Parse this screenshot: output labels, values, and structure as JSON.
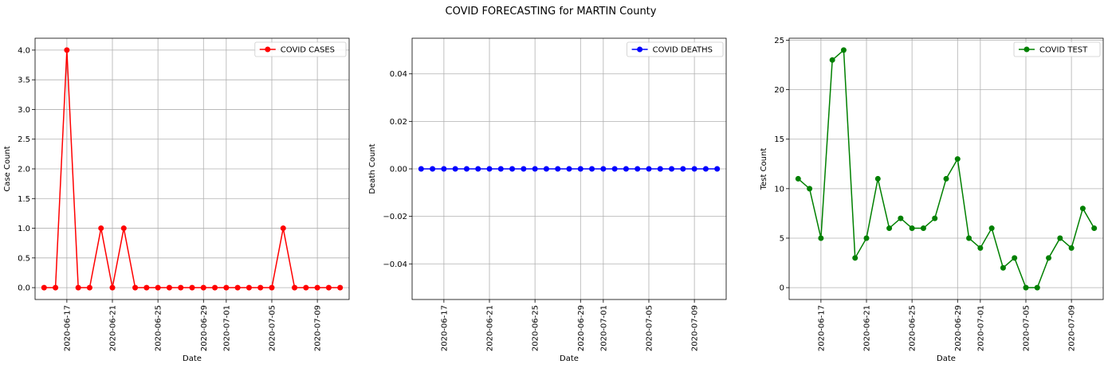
{
  "figure": {
    "suptitle": "COVID FORECASTING for MARTIN County"
  },
  "chart_data": [
    {
      "type": "line",
      "x": [
        "2020-06-15",
        "2020-06-16",
        "2020-06-17",
        "2020-06-18",
        "2020-06-19",
        "2020-06-20",
        "2020-06-21",
        "2020-06-22",
        "2020-06-23",
        "2020-06-24",
        "2020-06-25",
        "2020-06-26",
        "2020-06-27",
        "2020-06-28",
        "2020-06-29",
        "2020-06-30",
        "2020-07-01",
        "2020-07-02",
        "2020-07-03",
        "2020-07-04",
        "2020-07-05",
        "2020-07-06",
        "2020-07-07",
        "2020-07-08",
        "2020-07-09",
        "2020-07-10",
        "2020-07-11"
      ],
      "series": [
        {
          "name": "COVID CASES",
          "color": "#ff0000",
          "marker": "circle",
          "values": [
            0,
            0,
            4,
            0,
            0,
            1,
            0,
            1,
            0,
            0,
            0,
            0,
            0,
            0,
            0,
            0,
            0,
            0,
            0,
            0,
            0,
            1,
            0,
            0,
            0,
            0,
            0
          ]
        }
      ],
      "xticks": [
        "2020-06-17",
        "2020-06-21",
        "2020-06-25",
        "2020-06-29",
        "2020-07-01",
        "2020-07-05",
        "2020-07-09"
      ],
      "yticks": [
        0.0,
        0.5,
        1.0,
        1.5,
        2.0,
        2.5,
        3.0,
        3.5,
        4.0
      ],
      "ytick_labels": [
        "0.0",
        "0.5",
        "1.0",
        "1.5",
        "2.0",
        "2.5",
        "3.0",
        "3.5",
        "4.0"
      ],
      "xlim": [
        "2020-06-14T05:00",
        "2020-07-11T19:00"
      ],
      "ylim": [
        -0.2,
        4.2
      ],
      "xlabel": "Date",
      "ylabel": "Case Count",
      "grid": true,
      "legend": "top-right"
    },
    {
      "type": "line",
      "x": [
        "2020-06-15",
        "2020-06-16",
        "2020-06-17",
        "2020-06-18",
        "2020-06-19",
        "2020-06-20",
        "2020-06-21",
        "2020-06-22",
        "2020-06-23",
        "2020-06-24",
        "2020-06-25",
        "2020-06-26",
        "2020-06-27",
        "2020-06-28",
        "2020-06-29",
        "2020-06-30",
        "2020-07-01",
        "2020-07-02",
        "2020-07-03",
        "2020-07-04",
        "2020-07-05",
        "2020-07-06",
        "2020-07-07",
        "2020-07-08",
        "2020-07-09",
        "2020-07-10",
        "2020-07-11"
      ],
      "series": [
        {
          "name": "COVID DEATHS",
          "color": "#0000ff",
          "marker": "circle",
          "values": [
            0,
            0,
            0,
            0,
            0,
            0,
            0,
            0,
            0,
            0,
            0,
            0,
            0,
            0,
            0,
            0,
            0,
            0,
            0,
            0,
            0,
            0,
            0,
            0,
            0,
            0,
            0
          ]
        }
      ],
      "xticks": [
        "2020-06-17",
        "2020-06-21",
        "2020-06-25",
        "2020-06-29",
        "2020-07-01",
        "2020-07-05",
        "2020-07-09"
      ],
      "yticks": [
        -0.04,
        -0.02,
        0.0,
        0.02,
        0.04
      ],
      "ytick_labels": [
        "−0.04",
        "−0.02",
        "0.00",
        "0.02",
        "0.04"
      ],
      "xlim": [
        "2020-06-14T05:00",
        "2020-07-11T19:00"
      ],
      "ylim": [
        -0.055,
        0.055
      ],
      "xlabel": "Date",
      "ylabel": "Death Count",
      "grid": true,
      "legend": "top-right"
    },
    {
      "type": "line",
      "x": [
        "2020-06-15",
        "2020-06-16",
        "2020-06-17",
        "2020-06-18",
        "2020-06-19",
        "2020-06-20",
        "2020-06-21",
        "2020-06-22",
        "2020-06-23",
        "2020-06-24",
        "2020-06-25",
        "2020-06-26",
        "2020-06-27",
        "2020-06-28",
        "2020-06-29",
        "2020-06-30",
        "2020-07-01",
        "2020-07-02",
        "2020-07-03",
        "2020-07-04",
        "2020-07-05",
        "2020-07-06",
        "2020-07-07",
        "2020-07-08",
        "2020-07-09",
        "2020-07-10",
        "2020-07-11"
      ],
      "series": [
        {
          "name": "COVID TEST",
          "color": "#008000",
          "marker": "circle",
          "values": [
            11,
            10,
            5,
            23,
            24,
            3,
            5,
            11,
            6,
            7,
            6,
            6,
            7,
            11,
            13,
            5,
            4,
            6,
            2,
            3,
            0,
            0,
            3,
            5,
            4,
            8,
            6
          ]
        }
      ],
      "xticks": [
        "2020-06-17",
        "2020-06-21",
        "2020-06-25",
        "2020-06-29",
        "2020-07-01",
        "2020-07-05",
        "2020-07-09"
      ],
      "yticks": [
        0,
        5,
        10,
        15,
        20,
        25
      ],
      "ytick_labels": [
        "0",
        "5",
        "10",
        "15",
        "20",
        "25"
      ],
      "xlim": [
        "2020-06-14T05:00",
        "2020-07-11T19:00"
      ],
      "ylim": [
        -1.2,
        25.2
      ],
      "xlabel": "Date",
      "ylabel": "Test Count",
      "grid": true,
      "legend": "top-right"
    }
  ]
}
